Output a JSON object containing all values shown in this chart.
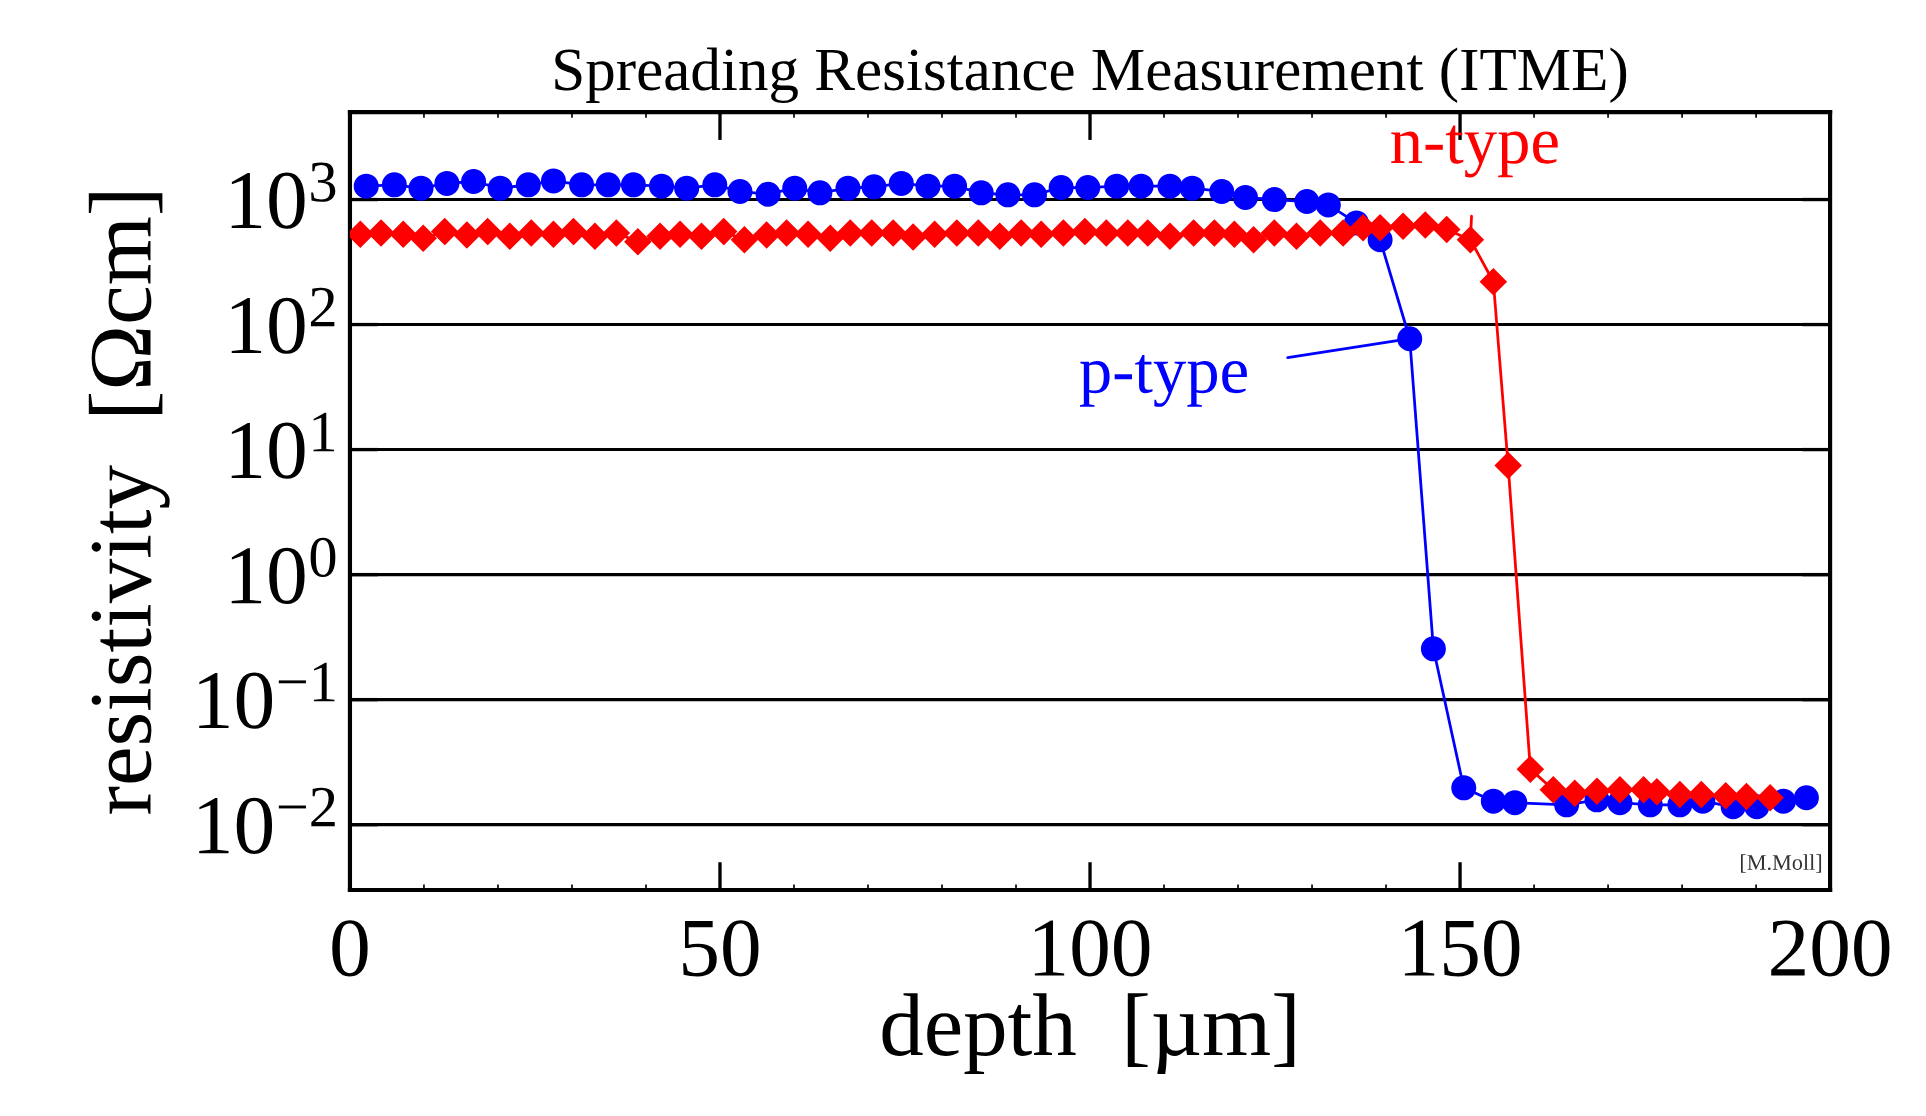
{
  "chart_data": {
    "type": "line",
    "title": "Spreading Resistance Measurement (ITME)",
    "xlabel": "depth  [µm]",
    "ylabel": "resistivity  [Ωcm]",
    "log": "y",
    "grid": "y",
    "line_style": "solid",
    "xlim": [
      0,
      200
    ],
    "xticks": [
      0,
      50,
      100,
      150,
      200
    ],
    "ylim": [
      0.003,
      5000
    ],
    "yticks": [
      {
        "value": 0.01,
        "label": "10$^{−2}$"
      },
      {
        "value": 0.1,
        "label": "10$^{−1}$"
      },
      {
        "value": 1,
        "label": "10$^{0}$"
      },
      {
        "value": 10,
        "label": "10$^{1}$"
      },
      {
        "value": 100,
        "label": "10$^{2}$"
      },
      {
        "value": 1000,
        "label": "10$^{3}$"
      }
    ],
    "annotations": [
      "[M.Moll]"
    ],
    "series": [
      {
        "name": "p-type",
        "color": "#0000ff",
        "marker": "circle",
        "x": [
          2.2,
          6.0,
          9.6,
          13.1,
          16.7,
          20.3,
          24.1,
          27.5,
          31.3,
          34.9,
          38.3,
          42.1,
          45.5,
          49.3,
          52.7,
          56.5,
          60.1,
          63.5,
          67.3,
          70.8,
          74.5,
          78.1,
          81.7,
          85.3,
          88.9,
          92.5,
          96.1,
          99.7,
          103.6,
          106.9,
          110.8,
          113.8,
          117.8,
          121.0,
          124.9,
          129.3,
          132.2,
          136.0,
          139.2,
          143.2,
          146.4,
          150.5,
          154.5,
          157.4,
          164.4,
          168.5,
          171.6,
          175.7,
          179.7,
          182.8,
          186.9,
          190.1,
          193.7,
          196.8
        ],
        "values": [
          1280,
          1311,
          1233,
          1345,
          1394,
          1233,
          1311,
          1410,
          1311,
          1311,
          1311,
          1280,
          1233,
          1311,
          1160,
          1103,
          1233,
          1131,
          1233,
          1264,
          1345,
          1280,
          1280,
          1131,
          1090,
          1090,
          1248,
          1248,
          1280,
          1280,
          1280,
          1233,
          1160,
          1040,
          1000,
          964,
          906,
          650,
          477,
          77,
          0.255,
          0.0197,
          0.0154,
          0.015,
          0.0144,
          0.0158,
          0.015,
          0.0144,
          0.0144,
          0.0154,
          0.0139,
          0.0139,
          0.0154,
          0.0164
        ]
      },
      {
        "name": "n-type",
        "color": "#ff0000",
        "marker": "diamond",
        "x": [
          1.4,
          4.2,
          7.2,
          9.9,
          12.8,
          15.8,
          18.6,
          21.6,
          24.5,
          27.5,
          30.2,
          33.1,
          36.0,
          38.9,
          41.9,
          44.6,
          47.5,
          50.5,
          53.3,
          56.3,
          59.0,
          61.9,
          64.9,
          67.6,
          70.5,
          73.4,
          76.1,
          79.0,
          82.0,
          84.9,
          87.8,
          90.7,
          93.4,
          96.4,
          99.3,
          102.2,
          105.1,
          107.8,
          110.8,
          114.0,
          116.8,
          119.5,
          122.1,
          124.9,
          127.9,
          131.1,
          134.2,
          136.9,
          139.2,
          142.3,
          145.3,
          148.2,
          151.4,
          154.5,
          156.5,
          159.5,
          162.6,
          165.5,
          168.5,
          171.6,
          174.8,
          176.6,
          179.7,
          182.6,
          185.9,
          188.7,
          191.9
        ],
        "values": [
          528,
          541,
          528,
          490,
          554,
          521,
          554,
          508,
          541,
          528,
          554,
          508,
          541,
          460,
          508,
          528,
          508,
          554,
          477,
          521,
          541,
          528,
          490,
          541,
          541,
          541,
          502,
          528,
          541,
          541,
          508,
          541,
          528,
          541,
          554,
          541,
          541,
          541,
          508,
          541,
          541,
          528,
          477,
          541,
          508,
          541,
          541,
          596,
          596,
          611,
          626,
          575,
          477,
          220,
          7.45,
          0.0278,
          0.019,
          0.0178,
          0.0185,
          0.019,
          0.019,
          0.0183,
          0.0174,
          0.0174,
          0.017,
          0.0168,
          0.0164
        ]
      }
    ]
  }
}
